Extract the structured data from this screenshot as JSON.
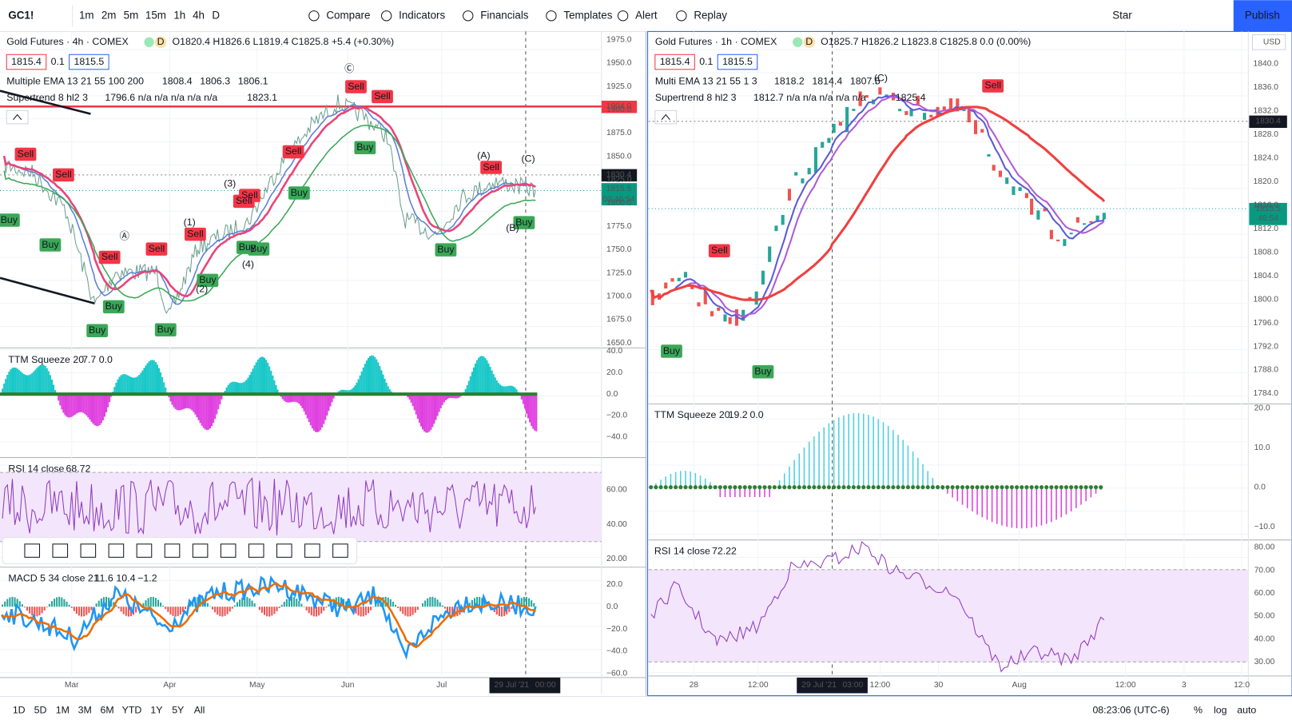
{
  "toolbar": {
    "symbol": "GC1!",
    "intervals": [
      "1m",
      "2m",
      "5m",
      "15m",
      "1h",
      "4h",
      "D"
    ],
    "buttons": [
      "Compare",
      "Indicators",
      "Financials",
      "Templates",
      "Alert",
      "Replay"
    ],
    "star": "Star",
    "publish": "Publish"
  },
  "left_chart": {
    "title": "Gold Futures · 4h · COMEX",
    "badge": "D",
    "ohlc": "O1820.4 H1826.6 L1819.4 C1825.8 +5.4 (+0.30%)",
    "bid": "1815.4",
    "spread": "0.1",
    "ask": "1815.5",
    "ema_label": "Multiple EMA 13 21 55 100 200",
    "ema_values": [
      "1808.4",
      "1806.3",
      "1806.1"
    ],
    "st_label": "Supertrend 8 hl2 3",
    "st_values": "1796.6 n/a n/a n/a n/a n/a",
    "st_last": "1823.1",
    "price_axis": [
      "1975.0",
      "1950.0",
      "1925.0",
      "1900.0",
      "1875.0",
      "1850.0",
      "1825.0",
      "1800.0",
      "1775.0",
      "1750.0",
      "1725.0",
      "1700.0",
      "1675.0",
      "1650.0"
    ],
    "price_tags": [
      "1904.0",
      "1830.4",
      "1815.5",
      "03:46:54"
    ],
    "signals": [
      "Sell",
      "Buy",
      "Sell",
      "Buy",
      "Sell",
      "Buy",
      "Buy",
      "Sell",
      "Buy",
      "Sell",
      "Buy",
      "Sell",
      "Buy",
      "Sell",
      "Buy",
      "Sell",
      "Sell",
      "Buy",
      "Buy",
      "Sell",
      "Buy",
      "Sell",
      "Buy"
    ],
    "waves": [
      "Ⓐ",
      "Ⓒ",
      "(1)",
      "(2)",
      "(3)",
      "(4)",
      "(A)",
      "(B)",
      "(C)"
    ],
    "ttm_label": "TTM Squeeze 20",
    "ttm_values": [
      "7.7",
      "0.0"
    ],
    "ttm_axis": [
      "40.0",
      "20.0",
      "0.0",
      "−20.0",
      "−40.0"
    ],
    "rsi_label": "RSI 14 close",
    "rsi_value": "68.72",
    "rsi_axis": [
      "60.00",
      "40.00",
      "20.00"
    ],
    "macd_label": "MACD 5 34 close 21",
    "macd_values": [
      "11.6",
      "10.4",
      "−1.2"
    ],
    "macd_axis": [
      "20.0",
      "0.0",
      "−20.0",
      "−40.0",
      "−60.0"
    ],
    "time_axis": [
      "Mar",
      "Apr",
      "May",
      "Jun",
      "Jul"
    ],
    "crosshair_time": "29 Jul '21",
    "crosshair_hour": "00:00"
  },
  "right_chart": {
    "title": "Gold Futures · 1h · COMEX",
    "badge": "D",
    "ohlc": "O1825.7 H1826.2 L1823.8 C1825.8 0.0 (0.00%)",
    "bid": "1815.4",
    "spread": "0.1",
    "ask": "1815.5",
    "ema_label": "Multi EMA 13 21 55 1 3",
    "ema_values": [
      "1818.2",
      "1814.4",
      "1807.5"
    ],
    "st_label": "Supertrend 8 hl2 3",
    "st_values": "1812.7 n/a n/a n/a n/a n/a",
    "st_last": "1825.4",
    "currency": "USD",
    "price_axis": [
      "1840.0",
      "1836.0",
      "1832.0",
      "1828.0",
      "1824.0",
      "1820.0",
      "1816.0",
      "1812.0",
      "1808.0",
      "1804.0",
      "1800.0",
      "1796.0",
      "1792.0",
      "1788.0",
      "1784.0"
    ],
    "price_tags": [
      "1830.4",
      "1815.5",
      "46:54"
    ],
    "signals": [
      "Sell",
      "Sell",
      "Buy",
      "Buy"
    ],
    "waves": [
      "(C)"
    ],
    "ttm_label": "TTM Squeeze 20",
    "ttm_values": [
      "19.2",
      "0.0"
    ],
    "ttm_axis": [
      "20.0",
      "10.0",
      "0.0",
      "−10.0"
    ],
    "rsi_label": "RSI 14 close",
    "rsi_value": "72.22",
    "rsi_axis": [
      "80.00",
      "70.00",
      "60.00",
      "50.00",
      "40.00",
      "30.00"
    ],
    "time_axis": [
      "28",
      "12:00",
      "12:00",
      "30",
      "Aug",
      "12:00",
      "3",
      "12:0"
    ],
    "crosshair_time": "29 Jul '21",
    "crosshair_hour": "03:00"
  },
  "bottom_bar": {
    "ranges": [
      "1D",
      "5D",
      "1M",
      "3M",
      "6M",
      "YTD",
      "1Y",
      "5Y",
      "All"
    ],
    "clock": "08:23:06 (UTC-6)",
    "percent": "%",
    "log": "log",
    "auto": "auto"
  }
}
